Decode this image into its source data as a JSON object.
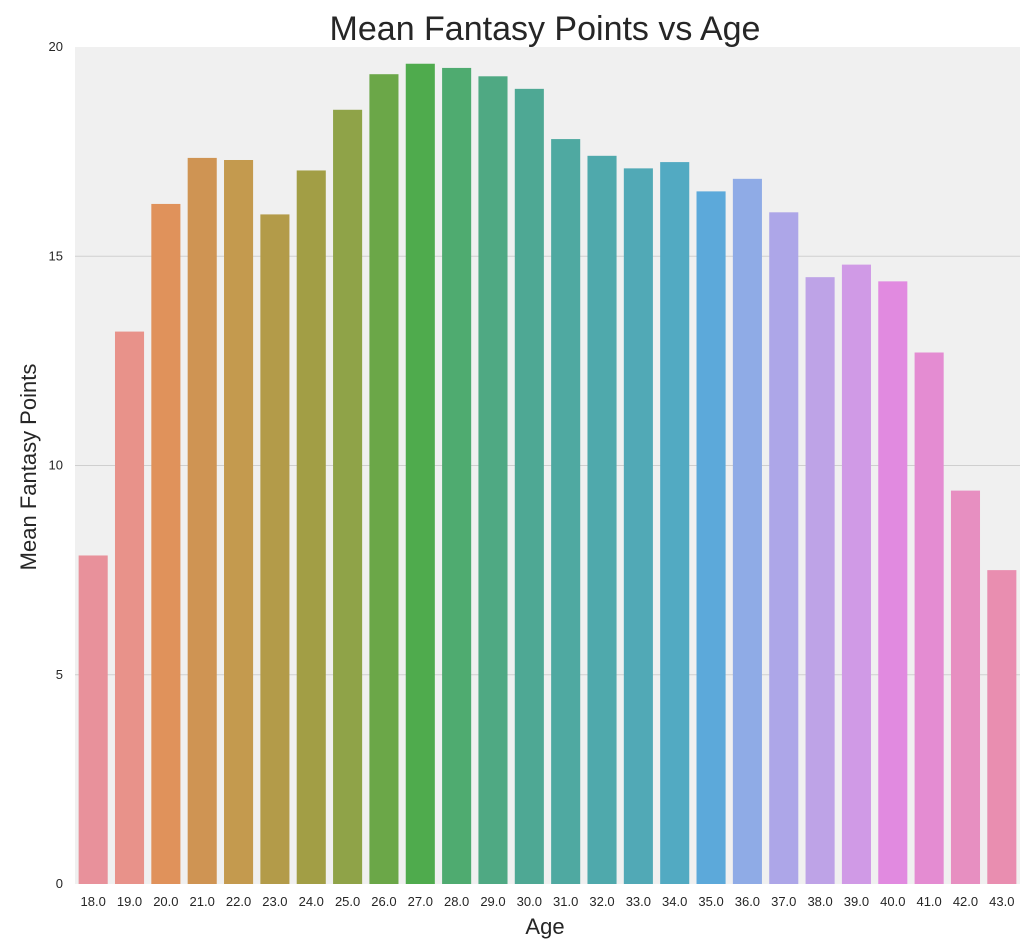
{
  "chart_data": {
    "type": "bar",
    "title": "Mean Fantasy Points vs Age",
    "xlabel": "Age",
    "ylabel": "Mean Fantasy Points",
    "ylim": [
      0,
      20
    ],
    "yticks": [
      "0",
      "5",
      "10",
      "15",
      "20"
    ],
    "grid": true,
    "categories": [
      "18.0",
      "19.0",
      "20.0",
      "21.0",
      "22.0",
      "23.0",
      "24.0",
      "25.0",
      "26.0",
      "27.0",
      "28.0",
      "29.0",
      "30.0",
      "31.0",
      "32.0",
      "33.0",
      "34.0",
      "35.0",
      "36.0",
      "37.0",
      "38.0",
      "39.0",
      "40.0",
      "41.0",
      "42.0",
      "43.0"
    ],
    "values": [
      7.85,
      13.2,
      16.25,
      17.35,
      17.3,
      16.0,
      17.05,
      18.5,
      19.35,
      19.6,
      19.5,
      19.3,
      19.0,
      17.8,
      17.4,
      17.1,
      17.25,
      16.55,
      16.85,
      16.05,
      14.5,
      14.8,
      14.4,
      12.7,
      9.4,
      7.5
    ],
    "colors": [
      "#e8919b",
      "#e8928a",
      "#e0925b",
      "#cf9453",
      "#c49a4e",
      "#b39b49",
      "#a29e45",
      "#8fa348",
      "#6ba748",
      "#4fab4d",
      "#4fab70",
      "#4fa983",
      "#4ea894",
      "#4fa9a1",
      "#4fa9ac",
      "#51a9b6",
      "#52aac2",
      "#5ca9da",
      "#8fabe6",
      "#ada6e8",
      "#bea3e7",
      "#d09ae6",
      "#e18ae0",
      "#e48cd2",
      "#e78fc1",
      "#e98eb0"
    ],
    "background": "#f0f0f0",
    "grid_color": "#cfcfcf"
  }
}
